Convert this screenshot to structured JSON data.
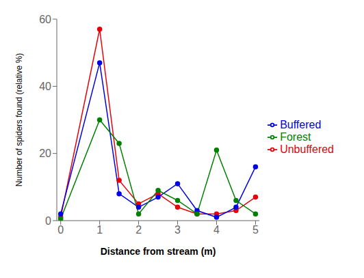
{
  "chart_data": {
    "type": "line",
    "xlabel": "Distance from stream (m)",
    "ylabel": "Number of spiders found (relative %)",
    "x": [
      0,
      1,
      1.5,
      2,
      2.5,
      3,
      3.5,
      4,
      4.5,
      5
    ],
    "series": [
      {
        "name": "Unbuffered",
        "color": "#e8000a",
        "values": [
          1,
          57,
          12,
          5,
          8,
          4,
          2,
          2,
          3,
          7
        ]
      },
      {
        "name": "Buffered",
        "color": "#0000e8",
        "values": [
          2,
          47,
          8,
          4,
          7,
          11,
          3,
          1,
          4,
          16
        ]
      },
      {
        "name": "Forest",
        "color": "#008000",
        "values": [
          0.5,
          30,
          23,
          2,
          9,
          6,
          2,
          21,
          6,
          2
        ]
      }
    ],
    "xlim": [
      -0.1,
      5.1
    ],
    "xticks": [
      0,
      1,
      2,
      3,
      4,
      5
    ],
    "ylim": [
      0,
      60
    ],
    "yticks": [
      0,
      20,
      40,
      60
    ],
    "marker": "circle",
    "legend": "right",
    "grid": false
  }
}
